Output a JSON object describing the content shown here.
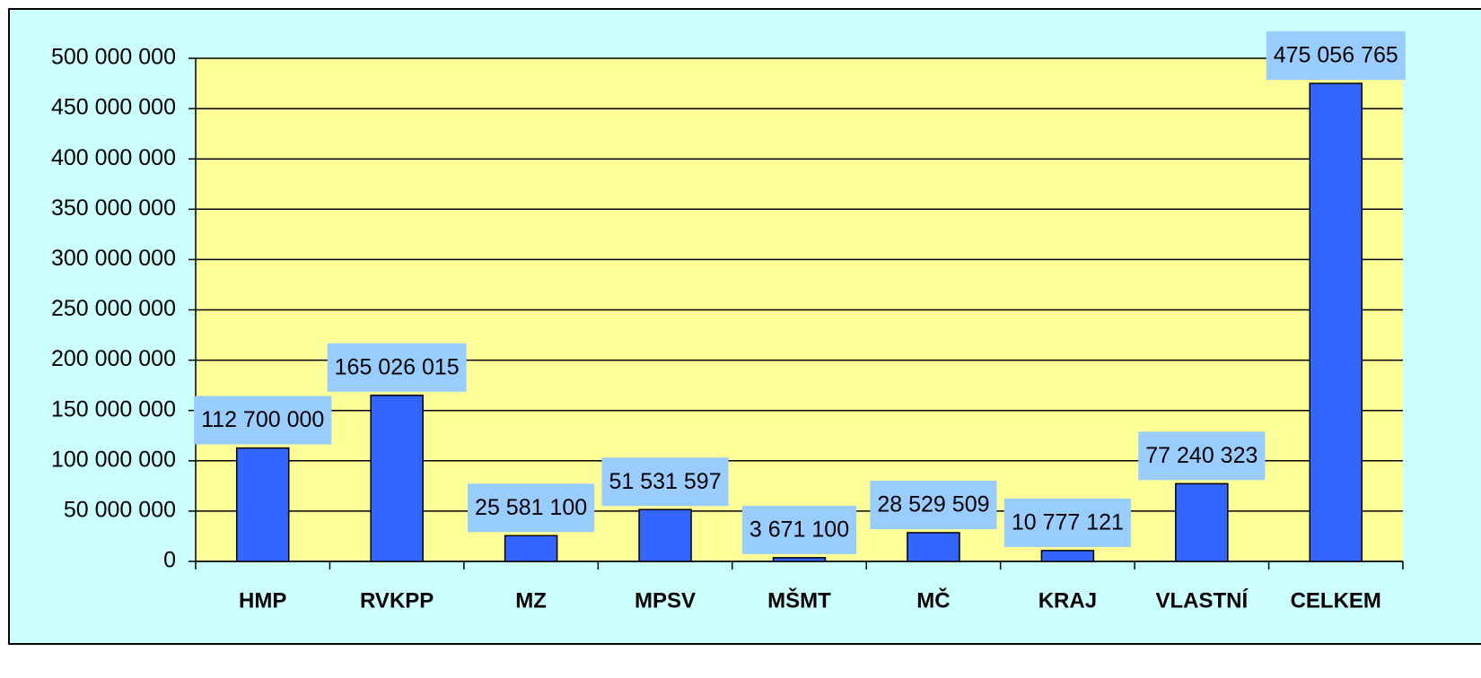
{
  "chart_data": {
    "type": "bar",
    "categories": [
      "HMP",
      "RVKPP",
      "MZ",
      "MPSV",
      "MŠMT",
      "MČ",
      "KRAJ",
      "VLASTNÍ",
      "CELKEM"
    ],
    "values": [
      112700000,
      165026015,
      25581100,
      51531597,
      3671100,
      28529509,
      10777121,
      77240323,
      475056765
    ],
    "value_labels": [
      "112 700 000",
      "165 026 015",
      "25 581 100",
      "51 531 597",
      "3 671 100",
      "28 529 509",
      "10 777 121",
      "77 240 323",
      "475 056 765"
    ],
    "color": "#3366ff",
    "ylim": [
      0,
      500000000
    ],
    "yticks": [
      0,
      {
        "value": 50000000,
        "label": "50 000 000"
      },
      {
        "value": 100000000,
        "label": "100 000 000"
      },
      {
        "value": 150000000,
        "label": "150 000 000"
      },
      {
        "value": 200000000,
        "label": "200 000 000"
      },
      {
        "value": 250000000,
        "label": "250 000 000"
      },
      {
        "value": 300000000,
        "label": "300 000 000"
      },
      {
        "value": 350000000,
        "label": "350 000 000"
      },
      {
        "value": 400000000,
        "label": "400 000 000"
      },
      {
        "value": 450000000,
        "label": "450 000 000"
      },
      {
        "value": 500000000,
        "label": "500 000 000"
      }
    ],
    "grid": true
  }
}
